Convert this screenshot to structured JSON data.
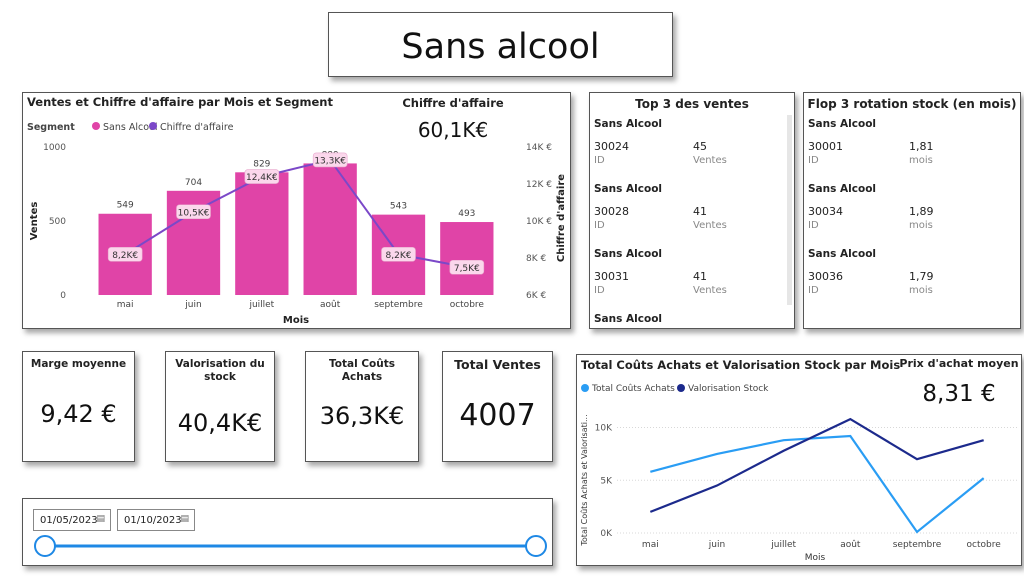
{
  "page_title": "Sans alcool",
  "chart1": {
    "title": "Ventes et Chiffre d'affaire par Mois et Segment",
    "legend_label": "Segment",
    "kpi_label": "Chiffre d'affaire",
    "kpi_value": "60,1K€"
  },
  "top3": {
    "title": "Top 3 des ventes",
    "items": [
      {
        "segment": "Sans Alcool",
        "id": "30024",
        "id_label": "ID",
        "value": "45",
        "value_label": "Ventes"
      },
      {
        "segment": "Sans Alcool",
        "id": "30028",
        "id_label": "ID",
        "value": "41",
        "value_label": "Ventes"
      },
      {
        "segment": "Sans Alcool",
        "id": "30031",
        "id_label": "ID",
        "value": "41",
        "value_label": "Ventes"
      },
      {
        "segment": "Sans Alcool"
      }
    ]
  },
  "flop3": {
    "title": "Flop 3 rotation stock (en mois)",
    "items": [
      {
        "segment": "Sans Alcool",
        "id": "30001",
        "id_label": "ID",
        "value": "1,81",
        "value_label": "mois"
      },
      {
        "segment": "Sans Alcool",
        "id": "30034",
        "id_label": "ID",
        "value": "1,89",
        "value_label": "mois"
      },
      {
        "segment": "Sans Alcool",
        "id": "30036",
        "id_label": "ID",
        "value": "1,79",
        "value_label": "mois"
      }
    ]
  },
  "kpis": {
    "marge": {
      "label": "Marge moyenne",
      "value": "9,42 €"
    },
    "valorisation": {
      "label": "Valorisation du stock",
      "value": "40,4K€"
    },
    "couts": {
      "label": "Total Coûts Achats",
      "value": "36,3K€"
    },
    "ventes": {
      "label": "Total Ventes",
      "value": "4007"
    }
  },
  "chart2": {
    "title": "Total Coûts Achats et Valorisation Stock par Mois",
    "kpi_label": "Prix d'achat moyen",
    "kpi_value": "8,31 €"
  },
  "slicer": {
    "start_date": "01/05/2023",
    "end_date": "01/10/2023",
    "range_fraction": [
      0,
      1
    ]
  },
  "colors": {
    "bar": "#e044a7",
    "line": "#7b48c8",
    "light_blue": "#2a9df4",
    "dark_blue": "#1c2a8c",
    "slider": "#1e88e5"
  },
  "chart_data": [
    {
      "type": "bar",
      "title": "Ventes et Chiffre d'affaire par Mois et Segment",
      "categories": [
        "mai",
        "juin",
        "juillet",
        "août",
        "septembre",
        "octobre"
      ],
      "series": [
        {
          "name": "Sans Alcool",
          "axis": "left",
          "values": [
            549,
            704,
            829,
            889,
            543,
            493
          ],
          "labels": [
            "549",
            "704",
            "829",
            "889",
            "543",
            "493"
          ]
        },
        {
          "name": "Chiffre d'affaire",
          "type": "line",
          "axis": "right",
          "values": [
            8.2,
            10.5,
            12.4,
            13.3,
            8.2,
            7.5
          ],
          "labels": [
            "8,2K€",
            "10,5K€",
            "12,4K€",
            "13,3K€",
            "8,2K€",
            "7,5K€"
          ]
        }
      ],
      "xlabel": "Mois",
      "ylabel": "Ventes",
      "y2label": "Chiffre d'affaire",
      "ylim": [
        0,
        1000
      ],
      "y_ticks": [
        "0",
        "500",
        "1000"
      ],
      "y2lim": [
        6,
        14
      ],
      "y2_ticks": [
        "6K €",
        "8K €",
        "10K €",
        "12K €",
        "14K €"
      ],
      "legend": "top-left"
    },
    {
      "type": "line",
      "title": "Total Coûts Achats et Valorisation Stock par Mois",
      "categories": [
        "mai",
        "juin",
        "juillet",
        "août",
        "septembre",
        "octobre"
      ],
      "series": [
        {
          "name": "Total Coûts Achats",
          "values": [
            5.8,
            7.5,
            8.8,
            9.2,
            0.1,
            5.2
          ]
        },
        {
          "name": "Valorisation Stock",
          "values": [
            2.0,
            4.5,
            7.8,
            10.8,
            7.0,
            8.8
          ]
        }
      ],
      "xlabel": "Mois",
      "ylabel": "Total Coûts Achats et Valorisati...",
      "ylim": [
        0,
        11
      ],
      "y_ticks": [
        "0K",
        "5K",
        "10K"
      ],
      "grid": true,
      "legend": "top-left"
    }
  ]
}
